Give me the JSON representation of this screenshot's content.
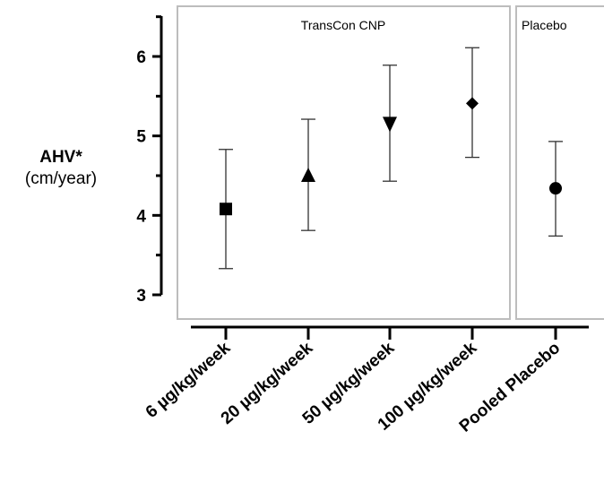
{
  "chart_data": {
    "type": "scatter",
    "ylabel": "AHV*",
    "ylabel_unit": "(cm/year)",
    "ylim": [
      2.8,
      6.5
    ],
    "yticks": [
      3,
      4,
      5,
      6
    ],
    "yminor_ticks": [
      3.5,
      4.5,
      5.5,
      6.5
    ],
    "grid": false,
    "panels": [
      {
        "label": "TransCon CNP",
        "categories": [
          0,
          1,
          2,
          3
        ]
      },
      {
        "label": "Placebo",
        "categories": [
          4
        ]
      }
    ],
    "categories": [
      "6 µg/kg/week",
      "20 µg/kg/week",
      "50 µg/kg/week",
      "100 µg/kg/week",
      "Pooled Placebo"
    ],
    "series": [
      {
        "values": [
          4.08,
          4.5,
          5.15,
          5.41,
          4.34
        ],
        "lower": [
          3.33,
          3.81,
          4.43,
          4.73,
          3.74
        ],
        "upper": [
          4.83,
          5.21,
          5.89,
          6.11,
          4.93
        ],
        "markers": [
          "square",
          "triangle-up",
          "triangle-down",
          "diamond",
          "circle"
        ]
      }
    ]
  }
}
